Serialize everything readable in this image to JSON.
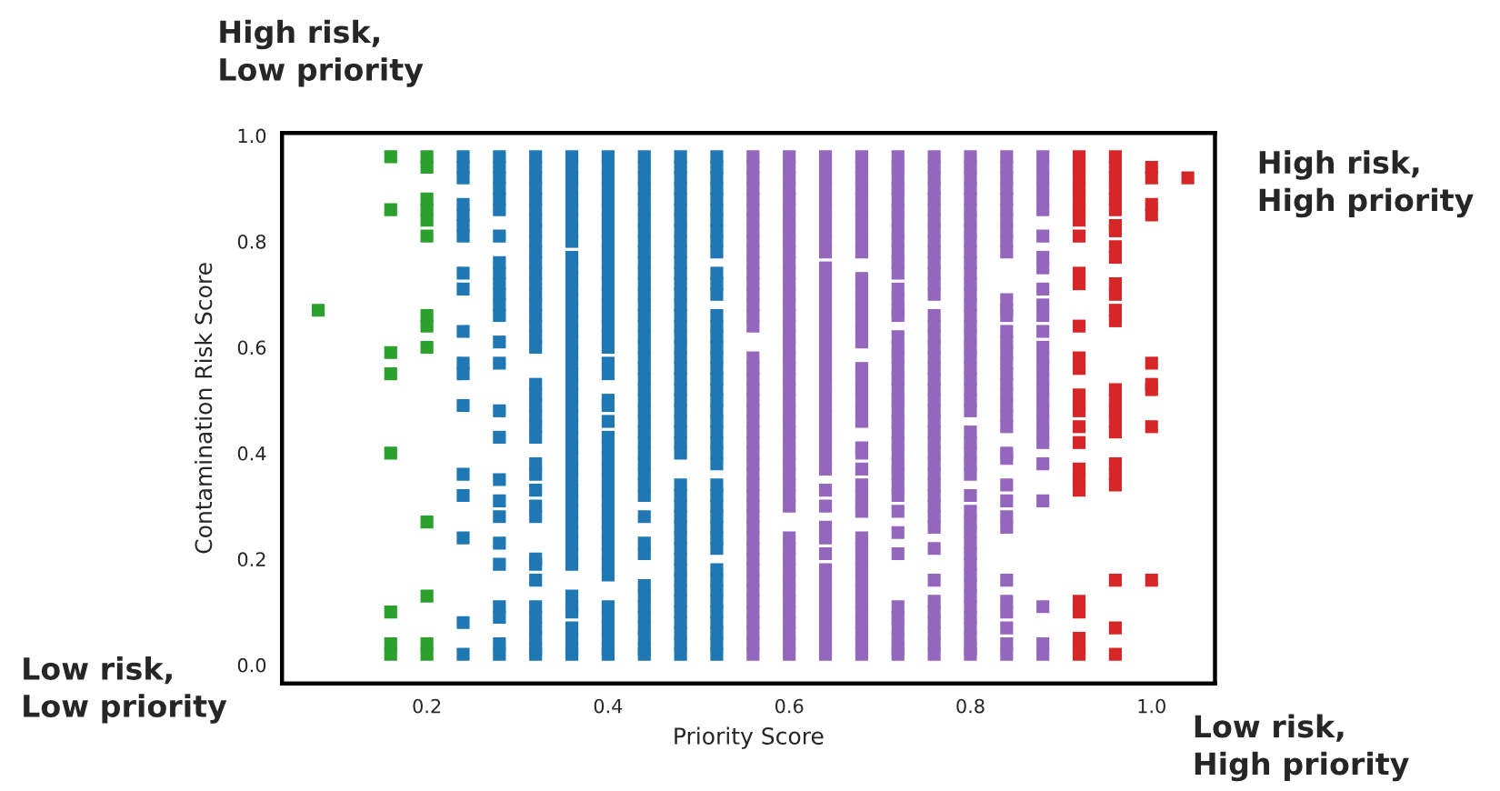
{
  "chart_data": {
    "type": "scatter",
    "xlabel": "Priority Score",
    "ylabel": "Contamination Risk Score",
    "xlim": [
      0.04,
      1.07
    ],
    "ylim": [
      -0.035,
      1.005
    ],
    "xticks": [
      0.2,
      0.4,
      0.6,
      0.8,
      {
        "value": 1.0,
        "label": "1.0"
      }
    ],
    "yticks": [
      {
        "value": 0,
        "label": "0.0"
      },
      0.2,
      0.4,
      0.6,
      0.8,
      {
        "value": 1,
        "label": "1.0"
      }
    ],
    "grid": false,
    "legend": false,
    "marker": "square",
    "annotations": [
      "High risk,\nLow priority",
      "High risk,\nHigh priority",
      "Low risk,\nLow priority",
      "Low risk,\nHigh priority"
    ],
    "series": [
      {
        "color": "#2ca02c",
        "x": [
          0.08,
          0.16,
          0.16,
          0.16,
          0.16,
          0.16,
          0.16,
          0.16,
          0.16,
          0.2,
          0.2,
          0.2,
          0.2,
          0.2,
          0.2,
          0.2,
          0.2,
          0.2,
          0.2,
          0.2,
          0.2,
          0.2
        ],
        "values": [
          0.67,
          0.96,
          0.86,
          0.59,
          0.55,
          0.4,
          0.1,
          0.04,
          0.02,
          0.96,
          0.94,
          0.88,
          0.86,
          0.84,
          0.81,
          0.66,
          0.64,
          0.6,
          0.27,
          0.13,
          0.04,
          0.02
        ]
      },
      {
        "color": "#1f77b4",
        "x": [
          0.24,
          0.24,
          0.24,
          0.24,
          0.24,
          0.24,
          0.24,
          0.24,
          0.24,
          0.24,
          0.24,
          0.24,
          0.24,
          0.24,
          0.24,
          0.24,
          0.24,
          0.24,
          0.28,
          0.28,
          0.28,
          0.28,
          0.28,
          0.28,
          0.28,
          0.28,
          0.28,
          0.28,
          0.28,
          0.28,
          0.28,
          0.28,
          0.28,
          0.28,
          0.28,
          0.28,
          0.28,
          0.28,
          0.28,
          0.28,
          0.28,
          0.28,
          0.28,
          0.28,
          0.32,
          0.32,
          0.32,
          0.32,
          0.32,
          0.32,
          0.32,
          0.32,
          0.32,
          0.32,
          0.32,
          0.32,
          0.32,
          0.32,
          0.32,
          0.32,
          0.32,
          0.32,
          0.32,
          0.32,
          0.32,
          0.32,
          0.32,
          0.32,
          0.32,
          0.32,
          0.32,
          0.32,
          0.32,
          0.32,
          0.32,
          0.32,
          0.32,
          0.32,
          0.32,
          0.32,
          0.32,
          0.32,
          0.32,
          0.36,
          0.36,
          0.36,
          0.36,
          0.36,
          0.36,
          0.36,
          0.36,
          0.36,
          0.36,
          0.36,
          0.36,
          0.36,
          0.36,
          0.36,
          0.36,
          0.36,
          0.36,
          0.36,
          0.36,
          0.36,
          0.36,
          0.36,
          0.36,
          0.36,
          0.36,
          0.36,
          0.36,
          0.36,
          0.36,
          0.36,
          0.36,
          0.36,
          0.36,
          0.36,
          0.36,
          0.36,
          0.36,
          0.36,
          0.36,
          0.36,
          0.36,
          0.36,
          0.36,
          0.36,
          0.36,
          0.4,
          0.4,
          0.4,
          0.4,
          0.4,
          0.4,
          0.4,
          0.4,
          0.4,
          0.4,
          0.4,
          0.4,
          0.4,
          0.4,
          0.4,
          0.4,
          0.4,
          0.4,
          0.4,
          0.4,
          0.4,
          0.4,
          0.4,
          0.4,
          0.4,
          0.4,
          0.4,
          0.4,
          0.4,
          0.4,
          0.4,
          0.4,
          0.4,
          0.4,
          0.4,
          0.4,
          0.4,
          0.4,
          0.4,
          0.4,
          0.4,
          0.4,
          0.4,
          0.4,
          0.44,
          0.44,
          0.44,
          0.44,
          0.44,
          0.44,
          0.44,
          0.44,
          0.44,
          0.44,
          0.44,
          0.44,
          0.44,
          0.44,
          0.44,
          0.44,
          0.44,
          0.44,
          0.44,
          0.44,
          0.44,
          0.44,
          0.44,
          0.44,
          0.44,
          0.44,
          0.44,
          0.44,
          0.44,
          0.44,
          0.44,
          0.44,
          0.44,
          0.44,
          0.44,
          0.44,
          0.44,
          0.44,
          0.44,
          0.44,
          0.44,
          0.44,
          0.44,
          0.44,
          0.48,
          0.48,
          0.48,
          0.48,
          0.48,
          0.48,
          0.48,
          0.48,
          0.48,
          0.48,
          0.48,
          0.48,
          0.48,
          0.48,
          0.48,
          0.48,
          0.48,
          0.48,
          0.48,
          0.48,
          0.48,
          0.48,
          0.48,
          0.48,
          0.48,
          0.48,
          0.48,
          0.48,
          0.48,
          0.48,
          0.48,
          0.48,
          0.48,
          0.48,
          0.48,
          0.48,
          0.48,
          0.48,
          0.48,
          0.48,
          0.48,
          0.48,
          0.48,
          0.48,
          0.48,
          0.48,
          0.52,
          0.52,
          0.52,
          0.52,
          0.52,
          0.52,
          0.52,
          0.52,
          0.52,
          0.52,
          0.52,
          0.52,
          0.52,
          0.52,
          0.52,
          0.52,
          0.52,
          0.52,
          0.52,
          0.52,
          0.52,
          0.52,
          0.52,
          0.52,
          0.52,
          0.52,
          0.52,
          0.52,
          0.52,
          0.52,
          0.52,
          0.52,
          0.52,
          0.52,
          0.52,
          0.52,
          0.52,
          0.52,
          0.52,
          0.52,
          0.52,
          0.52,
          0.52,
          0.52
        ],
        "values": [
          0.96,
          0.94,
          0.92,
          0.87,
          0.85,
          0.83,
          0.81,
          0.74,
          0.71,
          0.63,
          0.57,
          0.55,
          0.49,
          0.36,
          0.32,
          0.24,
          0.08,
          0.02,
          0.96,
          0.94,
          0.92,
          0.9,
          0.88,
          0.86,
          0.81,
          0.76,
          0.74,
          0.72,
          0.7,
          0.68,
          0.66,
          0.61,
          0.57,
          0.48,
          0.43,
          0.35,
          0.31,
          0.28,
          0.23,
          0.19,
          0.11,
          0.09,
          0.04,
          0.02,
          0.96,
          0.94,
          0.92,
          0.9,
          0.88,
          0.86,
          0.84,
          0.82,
          0.8,
          0.78,
          0.76,
          0.74,
          0.72,
          0.7,
          0.68,
          0.66,
          0.64,
          0.62,
          0.6,
          0.53,
          0.51,
          0.49,
          0.47,
          0.45,
          0.43,
          0.38,
          0.36,
          0.33,
          0.3,
          0.28,
          0.2,
          0.19,
          0.16,
          0.11,
          0.09,
          0.07,
          0.05,
          0.03,
          0.02,
          0.96,
          0.94,
          0.92,
          0.9,
          0.88,
          0.86,
          0.84,
          0.82,
          0.8,
          0.77,
          0.75,
          0.73,
          0.71,
          0.69,
          0.67,
          0.65,
          0.63,
          0.61,
          0.59,
          0.57,
          0.55,
          0.53,
          0.51,
          0.49,
          0.47,
          0.45,
          0.43,
          0.41,
          0.39,
          0.37,
          0.35,
          0.33,
          0.31,
          0.29,
          0.27,
          0.25,
          0.23,
          0.21,
          0.19,
          0.13,
          0.11,
          0.1,
          0.07,
          0.05,
          0.03,
          0.02,
          0.96,
          0.94,
          0.92,
          0.9,
          0.88,
          0.86,
          0.84,
          0.82,
          0.8,
          0.78,
          0.76,
          0.74,
          0.72,
          0.7,
          0.68,
          0.66,
          0.64,
          0.62,
          0.6,
          0.57,
          0.55,
          0.5,
          0.49,
          0.46,
          0.43,
          0.41,
          0.39,
          0.37,
          0.35,
          0.33,
          0.31,
          0.29,
          0.27,
          0.25,
          0.23,
          0.21,
          0.19,
          0.17,
          0.11,
          0.09,
          0.07,
          0.05,
          0.03,
          0.02,
          0.96,
          0.94,
          0.92,
          0.9,
          0.88,
          0.86,
          0.84,
          0.82,
          0.8,
          0.78,
          0.76,
          0.74,
          0.72,
          0.7,
          0.68,
          0.66,
          0.64,
          0.62,
          0.6,
          0.58,
          0.56,
          0.54,
          0.52,
          0.5,
          0.48,
          0.46,
          0.44,
          0.42,
          0.4,
          0.38,
          0.36,
          0.34,
          0.32,
          0.28,
          0.23,
          0.21,
          0.15,
          0.13,
          0.11,
          0.09,
          0.07,
          0.05,
          0.03,
          0.02,
          0.96,
          0.94,
          0.92,
          0.9,
          0.88,
          0.86,
          0.84,
          0.82,
          0.8,
          0.78,
          0.76,
          0.74,
          0.72,
          0.7,
          0.68,
          0.66,
          0.64,
          0.62,
          0.6,
          0.58,
          0.56,
          0.54,
          0.52,
          0.5,
          0.48,
          0.46,
          0.44,
          0.42,
          0.4,
          0.34,
          0.32,
          0.3,
          0.28,
          0.26,
          0.24,
          0.22,
          0.2,
          0.18,
          0.16,
          0.14,
          0.12,
          0.1,
          0.08,
          0.06,
          0.04,
          0.02,
          0.96,
          0.94,
          0.92,
          0.9,
          0.88,
          0.86,
          0.84,
          0.82,
          0.8,
          0.78,
          0.74,
          0.72,
          0.7,
          0.66,
          0.64,
          0.62,
          0.6,
          0.58,
          0.56,
          0.54,
          0.52,
          0.5,
          0.48,
          0.46,
          0.44,
          0.42,
          0.4,
          0.38,
          0.34,
          0.32,
          0.3,
          0.28,
          0.26,
          0.24,
          0.22,
          0.18,
          0.16,
          0.14,
          0.12,
          0.1,
          0.08,
          0.06,
          0.04,
          0.02
        ]
      },
      {
        "color": "#9467bd",
        "x": [
          0.56,
          0.56,
          0.56,
          0.56,
          0.56,
          0.56,
          0.56,
          0.56,
          0.56,
          0.56,
          0.56,
          0.56,
          0.56,
          0.56,
          0.56,
          0.56,
          0.56,
          0.56,
          0.56,
          0.56,
          0.56,
          0.56,
          0.56,
          0.56,
          0.56,
          0.56,
          0.56,
          0.56,
          0.56,
          0.56,
          0.56,
          0.56,
          0.56,
          0.56,
          0.56,
          0.56,
          0.56,
          0.56,
          0.56,
          0.56,
          0.56,
          0.56,
          0.56,
          0.56,
          0.56,
          0.56,
          0.6,
          0.6,
          0.6,
          0.6,
          0.6,
          0.6,
          0.6,
          0.6,
          0.6,
          0.6,
          0.6,
          0.6,
          0.6,
          0.6,
          0.6,
          0.6,
          0.6,
          0.6,
          0.6,
          0.6,
          0.6,
          0.6,
          0.6,
          0.6,
          0.6,
          0.6,
          0.6,
          0.6,
          0.6,
          0.6,
          0.6,
          0.6,
          0.6,
          0.6,
          0.6,
          0.6,
          0.6,
          0.6,
          0.6,
          0.6,
          0.6,
          0.6,
          0.6,
          0.6,
          0.6,
          0.6,
          0.64,
          0.64,
          0.64,
          0.64,
          0.64,
          0.64,
          0.64,
          0.64,
          0.64,
          0.64,
          0.64,
          0.64,
          0.64,
          0.64,
          0.64,
          0.64,
          0.64,
          0.64,
          0.64,
          0.64,
          0.64,
          0.64,
          0.64,
          0.64,
          0.64,
          0.64,
          0.64,
          0.64,
          0.64,
          0.64,
          0.64,
          0.64,
          0.64,
          0.64,
          0.64,
          0.64,
          0.64,
          0.64,
          0.64,
          0.64,
          0.64,
          0.64,
          0.64,
          0.64,
          0.68,
          0.68,
          0.68,
          0.68,
          0.68,
          0.68,
          0.68,
          0.68,
          0.68,
          0.68,
          0.68,
          0.68,
          0.68,
          0.68,
          0.68,
          0.68,
          0.68,
          0.68,
          0.68,
          0.68,
          0.68,
          0.68,
          0.68,
          0.68,
          0.68,
          0.68,
          0.68,
          0.68,
          0.68,
          0.68,
          0.68,
          0.68,
          0.68,
          0.68,
          0.68,
          0.68,
          0.68,
          0.68,
          0.68,
          0.68,
          0.68,
          0.68,
          0.72,
          0.72,
          0.72,
          0.72,
          0.72,
          0.72,
          0.72,
          0.72,
          0.72,
          0.72,
          0.72,
          0.72,
          0.72,
          0.72,
          0.72,
          0.72,
          0.72,
          0.72,
          0.72,
          0.72,
          0.72,
          0.72,
          0.72,
          0.72,
          0.72,
          0.72,
          0.72,
          0.72,
          0.72,
          0.72,
          0.72,
          0.72,
          0.72,
          0.72,
          0.72,
          0.72,
          0.72,
          0.72,
          0.72,
          0.72,
          0.72,
          0.76,
          0.76,
          0.76,
          0.76,
          0.76,
          0.76,
          0.76,
          0.76,
          0.76,
          0.76,
          0.76,
          0.76,
          0.76,
          0.76,
          0.76,
          0.76,
          0.76,
          0.76,
          0.76,
          0.76,
          0.76,
          0.76,
          0.76,
          0.76,
          0.76,
          0.76,
          0.76,
          0.76,
          0.76,
          0.76,
          0.76,
          0.76,
          0.76,
          0.76,
          0.76,
          0.76,
          0.76,
          0.76,
          0.76,
          0.76,
          0.76,
          0.76,
          0.76,
          0.8,
          0.8,
          0.8,
          0.8,
          0.8,
          0.8,
          0.8,
          0.8,
          0.8,
          0.8,
          0.8,
          0.8,
          0.8,
          0.8,
          0.8,
          0.8,
          0.8,
          0.8,
          0.8,
          0.8,
          0.8,
          0.8,
          0.8,
          0.8,
          0.8,
          0.8,
          0.8,
          0.8,
          0.8,
          0.8,
          0.8,
          0.8,
          0.8,
          0.8,
          0.8,
          0.8,
          0.8,
          0.8,
          0.8,
          0.8,
          0.8,
          0.8,
          0.8,
          0.8,
          0.8,
          0.8,
          0.84,
          0.84,
          0.84,
          0.84,
          0.84,
          0.84,
          0.84,
          0.84,
          0.84,
          0.84,
          0.84,
          0.84,
          0.84,
          0.84,
          0.84,
          0.84,
          0.84,
          0.84,
          0.84,
          0.84,
          0.84,
          0.84,
          0.84,
          0.84,
          0.84,
          0.84,
          0.84,
          0.84,
          0.84,
          0.84,
          0.84,
          0.84,
          0.84,
          0.84,
          0.84,
          0.88,
          0.88,
          0.88,
          0.88,
          0.88,
          0.88,
          0.88,
          0.88,
          0.88,
          0.88,
          0.88,
          0.88,
          0.88,
          0.88,
          0.88,
          0.88,
          0.88,
          0.88,
          0.88,
          0.88,
          0.88,
          0.88,
          0.88,
          0.88,
          0.88,
          0.88,
          0.88,
          0.88
        ],
        "values": [
          0.96,
          0.94,
          0.92,
          0.9,
          0.88,
          0.86,
          0.84,
          0.82,
          0.8,
          0.78,
          0.76,
          0.74,
          0.72,
          0.7,
          0.68,
          0.66,
          0.64,
          0.58,
          0.56,
          0.54,
          0.52,
          0.5,
          0.48,
          0.46,
          0.44,
          0.42,
          0.4,
          0.38,
          0.36,
          0.34,
          0.32,
          0.3,
          0.28,
          0.26,
          0.24,
          0.22,
          0.2,
          0.18,
          0.16,
          0.14,
          0.12,
          0.1,
          0.08,
          0.06,
          0.04,
          0.02,
          0.96,
          0.94,
          0.92,
          0.9,
          0.88,
          0.86,
          0.84,
          0.82,
          0.8,
          0.78,
          0.76,
          0.74,
          0.72,
          0.7,
          0.68,
          0.66,
          0.64,
          0.62,
          0.6,
          0.58,
          0.56,
          0.54,
          0.52,
          0.5,
          0.48,
          0.46,
          0.44,
          0.42,
          0.4,
          0.38,
          0.36,
          0.34,
          0.32,
          0.3,
          0.24,
          0.22,
          0.2,
          0.18,
          0.16,
          0.14,
          0.12,
          0.1,
          0.08,
          0.06,
          0.04,
          0.02,
          0.96,
          0.94,
          0.92,
          0.9,
          0.88,
          0.86,
          0.84,
          0.82,
          0.8,
          0.78,
          0.75,
          0.73,
          0.71,
          0.69,
          0.67,
          0.65,
          0.63,
          0.61,
          0.59,
          0.57,
          0.55,
          0.53,
          0.51,
          0.49,
          0.47,
          0.45,
          0.43,
          0.41,
          0.39,
          0.37,
          0.33,
          0.3,
          0.26,
          0.24,
          0.21,
          0.18,
          0.16,
          0.14,
          0.12,
          0.1,
          0.08,
          0.06,
          0.04,
          0.02,
          0.96,
          0.94,
          0.92,
          0.9,
          0.88,
          0.86,
          0.84,
          0.82,
          0.8,
          0.78,
          0.73,
          0.71,
          0.69,
          0.67,
          0.65,
          0.63,
          0.61,
          0.56,
          0.54,
          0.52,
          0.5,
          0.48,
          0.46,
          0.41,
          0.4,
          0.37,
          0.34,
          0.32,
          0.3,
          0.29,
          0.24,
          0.22,
          0.2,
          0.18,
          0.16,
          0.14,
          0.12,
          0.1,
          0.08,
          0.06,
          0.04,
          0.02,
          0.96,
          0.94,
          0.92,
          0.9,
          0.88,
          0.86,
          0.84,
          0.82,
          0.8,
          0.78,
          0.76,
          0.74,
          0.71,
          0.69,
          0.67,
          0.66,
          0.62,
          0.6,
          0.58,
          0.56,
          0.54,
          0.52,
          0.5,
          0.48,
          0.46,
          0.44,
          0.42,
          0.4,
          0.38,
          0.36,
          0.34,
          0.32,
          0.29,
          0.25,
          0.21,
          0.11,
          0.09,
          0.07,
          0.05,
          0.03,
          0.02,
          0.96,
          0.94,
          0.92,
          0.9,
          0.88,
          0.86,
          0.84,
          0.82,
          0.8,
          0.78,
          0.76,
          0.74,
          0.72,
          0.7,
          0.66,
          0.64,
          0.62,
          0.6,
          0.58,
          0.56,
          0.54,
          0.52,
          0.5,
          0.48,
          0.46,
          0.44,
          0.42,
          0.4,
          0.38,
          0.36,
          0.34,
          0.32,
          0.3,
          0.28,
          0.26,
          0.22,
          0.16,
          0.12,
          0.1,
          0.08,
          0.06,
          0.04,
          0.02,
          0.96,
          0.94,
          0.92,
          0.9,
          0.88,
          0.86,
          0.84,
          0.82,
          0.8,
          0.78,
          0.76,
          0.74,
          0.72,
          0.7,
          0.68,
          0.66,
          0.64,
          0.62,
          0.6,
          0.58,
          0.56,
          0.54,
          0.52,
          0.5,
          0.48,
          0.44,
          0.42,
          0.4,
          0.38,
          0.36,
          0.32,
          0.29,
          0.27,
          0.25,
          0.23,
          0.21,
          0.19,
          0.17,
          0.15,
          0.13,
          0.11,
          0.09,
          0.07,
          0.05,
          0.03,
          0.02,
          0.96,
          0.94,
          0.92,
          0.9,
          0.88,
          0.86,
          0.84,
          0.82,
          0.8,
          0.78,
          0.69,
          0.67,
          0.66,
          0.63,
          0.61,
          0.59,
          0.57,
          0.55,
          0.53,
          0.51,
          0.49,
          0.47,
          0.45,
          0.4,
          0.39,
          0.34,
          0.31,
          0.28,
          0.26,
          0.16,
          0.12,
          0.1,
          0.07,
          0.04,
          0.02,
          0.96,
          0.94,
          0.92,
          0.9,
          0.88,
          0.86,
          0.81,
          0.77,
          0.75,
          0.71,
          0.68,
          0.66,
          0.63,
          0.6,
          0.58,
          0.56,
          0.54,
          0.52,
          0.5,
          0.48,
          0.46,
          0.44,
          0.42,
          0.38,
          0.31,
          0.11,
          0.04,
          0.02
        ]
      },
      {
        "color": "#d62728",
        "x": [
          0.92,
          0.92,
          0.92,
          0.92,
          0.92,
          0.92,
          0.92,
          0.92,
          0.92,
          0.92,
          0.92,
          0.92,
          0.92,
          0.92,
          0.92,
          0.92,
          0.92,
          0.92,
          0.92,
          0.92,
          0.92,
          0.92,
          0.92,
          0.92,
          0.92,
          0.92,
          0.96,
          0.96,
          0.96,
          0.96,
          0.96,
          0.96,
          0.96,
          0.96,
          0.96,
          0.96,
          0.96,
          0.96,
          0.96,
          0.96,
          0.96,
          0.96,
          0.96,
          0.96,
          0.96,
          0.96,
          0.96,
          0.96,
          0.96,
          0.96,
          0.96,
          1.0,
          1.0,
          1.0,
          1.0,
          1.0,
          1.0,
          1.0,
          1.0,
          1.0,
          1.04
        ],
        "values": [
          0.96,
          0.94,
          0.92,
          0.9,
          0.88,
          0.86,
          0.84,
          0.81,
          0.74,
          0.72,
          0.64,
          0.58,
          0.56,
          0.51,
          0.49,
          0.48,
          0.45,
          0.42,
          0.37,
          0.35,
          0.33,
          0.12,
          0.1,
          0.05,
          0.03,
          0.02,
          0.96,
          0.94,
          0.92,
          0.9,
          0.88,
          0.86,
          0.83,
          0.82,
          0.79,
          0.77,
          0.72,
          0.7,
          0.67,
          0.65,
          0.52,
          0.5,
          0.48,
          0.46,
          0.44,
          0.38,
          0.36,
          0.34,
          0.16,
          0.07,
          0.02,
          0.94,
          0.92,
          0.87,
          0.85,
          0.57,
          0.53,
          0.52,
          0.45,
          0.16,
          0.92
        ]
      }
    ]
  }
}
